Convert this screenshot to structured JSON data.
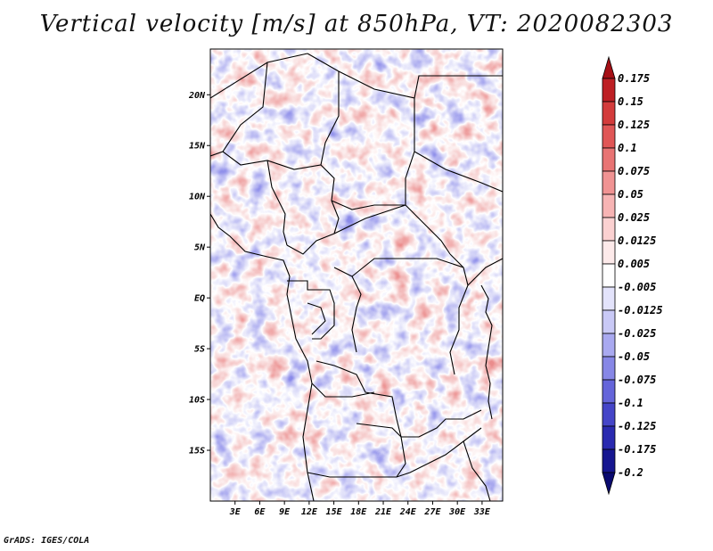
{
  "title": "Vertical velocity [m/s] at 850hPa, VT: 2020082303",
  "credit": "GrADS: IGES/COLA",
  "map": {
    "lat_labels": [
      "20N",
      "15N",
      "10N",
      "5N",
      "EQ",
      "5S",
      "10S",
      "15S"
    ],
    "lon_labels": [
      "3E",
      "6E",
      "9E",
      "12E",
      "15E",
      "18E",
      "21E",
      "24E",
      "27E",
      "30E",
      "33E"
    ],
    "lat_values": [
      20,
      15,
      10,
      5,
      0,
      -5,
      -10,
      -15
    ],
    "lon_values": [
      3,
      6,
      9,
      12,
      15,
      18,
      21,
      24,
      27,
      30,
      33
    ],
    "lat_range": [
      -20,
      24.5
    ],
    "lon_range": [
      0,
      35.5
    ]
  },
  "colorbar": {
    "labels": [
      "0.175",
      "0.15",
      "0.125",
      "0.1",
      "0.075",
      "0.05",
      "0.025",
      "0.0125",
      "0.005",
      "-0.005",
      "-0.0125",
      "-0.025",
      "-0.05",
      "-0.075",
      "-0.1",
      "-0.125",
      "-0.175",
      "-0.2"
    ],
    "colors": [
      "#a50f15",
      "#bd1f24",
      "#d33b3b",
      "#e05656",
      "#e87474",
      "#f09393",
      "#f7b4b4",
      "#fbd1d1",
      "#fdeaea",
      "#ffffff",
      "#e3e3fb",
      "#c9c9f6",
      "#a9a9f0",
      "#8787e6",
      "#6565da",
      "#4545c8",
      "#2a2ab0",
      "#161690",
      "#0a0a70"
    ]
  }
}
